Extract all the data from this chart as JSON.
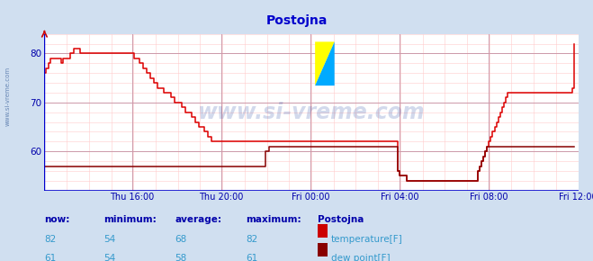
{
  "title": "Postojna",
  "title_color": "#0000cc",
  "bg_color": "#d0dff0",
  "plot_bg_color": "#ffffff",
  "grid_minor_color": "#ffcccc",
  "grid_major_color": "#cc99aa",
  "tick_color": "#0000aa",
  "xlim": [
    0,
    287
  ],
  "ylim": [
    52,
    84
  ],
  "yticks": [
    60,
    70,
    80
  ],
  "xtick_positions": [
    47,
    95,
    143,
    191,
    239,
    287
  ],
  "xtick_labels": [
    "Thu 16:00",
    "Thu 20:00",
    "Fri 00:00",
    "Fri 04:00",
    "Fri 08:00",
    "Fri 12:00"
  ],
  "temp_color": "#dd0000",
  "dew_color": "#880000",
  "line_width": 1.1,
  "watermark": "www.si-vreme.com",
  "watermark_color": "#3355aa",
  "watermark_alpha": 0.22,
  "legend_title": "Postojna",
  "legend_headers": [
    "now:",
    "minimum:",
    "average:",
    "maximum:"
  ],
  "temp_stats": [
    82,
    54,
    68,
    82
  ],
  "dew_stats": [
    61,
    54,
    58,
    61
  ],
  "temp_label": "temperature[F]",
  "dew_label": "dew point[F]",
  "temp_sq_color": "#cc0000",
  "dew_sq_color": "#880000",
  "temp_data": [
    76,
    77,
    78,
    79,
    79,
    79,
    79,
    79,
    79,
    78,
    79,
    79,
    79,
    79,
    80,
    80,
    81,
    81,
    81,
    80,
    80,
    80,
    80,
    80,
    80,
    80,
    80,
    80,
    80,
    80,
    80,
    80,
    80,
    80,
    80,
    80,
    80,
    80,
    80,
    80,
    80,
    80,
    80,
    80,
    80,
    80,
    80,
    80,
    79,
    79,
    79,
    78,
    78,
    77,
    77,
    76,
    76,
    75,
    75,
    74,
    74,
    73,
    73,
    73,
    72,
    72,
    72,
    72,
    71,
    71,
    70,
    70,
    70,
    70,
    69,
    69,
    68,
    68,
    68,
    67,
    67,
    66,
    66,
    65,
    65,
    65,
    64,
    64,
    63,
    63,
    62,
    62,
    62,
    62,
    62,
    62,
    62,
    62,
    62,
    62,
    62,
    62,
    62,
    62,
    62,
    62,
    62,
    62,
    62,
    62,
    62,
    62,
    62,
    62,
    62,
    62,
    62,
    62,
    62,
    62,
    62,
    62,
    62,
    62,
    62,
    62,
    62,
    62,
    62,
    62,
    62,
    62,
    62,
    62,
    62,
    62,
    62,
    62,
    62,
    62,
    62,
    62,
    62,
    62,
    62,
    62,
    62,
    62,
    62,
    62,
    62,
    62,
    62,
    62,
    62,
    62,
    62,
    62,
    62,
    62,
    62,
    62,
    62,
    62,
    62,
    62,
    62,
    62,
    62,
    62,
    62,
    62,
    62,
    62,
    62,
    62,
    62,
    62,
    62,
    62,
    62,
    62,
    62,
    62,
    62,
    62,
    62,
    62,
    62,
    62,
    56,
    55,
    55,
    55,
    55,
    54,
    54,
    54,
    54,
    54,
    54,
    54,
    54,
    54,
    54,
    54,
    54,
    54,
    54,
    54,
    54,
    54,
    54,
    54,
    54,
    54,
    54,
    54,
    54,
    54,
    54,
    54,
    54,
    54,
    54,
    54,
    54,
    54,
    54,
    54,
    54,
    54,
    54,
    56,
    57,
    58,
    59,
    60,
    61,
    62,
    63,
    64,
    65,
    66,
    67,
    68,
    69,
    70,
    71,
    72,
    72,
    72,
    72,
    72,
    72,
    72,
    72,
    72,
    72,
    72,
    72,
    72,
    72,
    72,
    72,
    72,
    72,
    72,
    72,
    72,
    72,
    72,
    72,
    72,
    72,
    72,
    72,
    72,
    72,
    72,
    72,
    72,
    72,
    72,
    73,
    82
  ],
  "dew_data": [
    57,
    57,
    57,
    57,
    57,
    57,
    57,
    57,
    57,
    57,
    57,
    57,
    57,
    57,
    57,
    57,
    57,
    57,
    57,
    57,
    57,
    57,
    57,
    57,
    57,
    57,
    57,
    57,
    57,
    57,
    57,
    57,
    57,
    57,
    57,
    57,
    57,
    57,
    57,
    57,
    57,
    57,
    57,
    57,
    57,
    57,
    57,
    57,
    57,
    57,
    57,
    57,
    57,
    57,
    57,
    57,
    57,
    57,
    57,
    57,
    57,
    57,
    57,
    57,
    57,
    57,
    57,
    57,
    57,
    57,
    57,
    57,
    57,
    57,
    57,
    57,
    57,
    57,
    57,
    57,
    57,
    57,
    57,
    57,
    57,
    57,
    57,
    57,
    57,
    57,
    57,
    57,
    57,
    57,
    57,
    57,
    57,
    57,
    57,
    57,
    57,
    57,
    57,
    57,
    57,
    57,
    57,
    57,
    57,
    57,
    57,
    57,
    57,
    57,
    57,
    57,
    57,
    57,
    57,
    60,
    60,
    61,
    61,
    61,
    61,
    61,
    61,
    61,
    61,
    61,
    61,
    61,
    61,
    61,
    61,
    61,
    61,
    61,
    61,
    61,
    61,
    61,
    61,
    61,
    61,
    61,
    61,
    61,
    61,
    61,
    61,
    61,
    61,
    61,
    61,
    61,
    61,
    61,
    61,
    61,
    61,
    61,
    61,
    61,
    61,
    61,
    61,
    61,
    61,
    61,
    61,
    61,
    61,
    61,
    61,
    61,
    61,
    61,
    61,
    61,
    61,
    61,
    61,
    61,
    61,
    61,
    61,
    61,
    61,
    61,
    56,
    55,
    55,
    55,
    55,
    54,
    54,
    54,
    54,
    54,
    54,
    54,
    54,
    54,
    54,
    54,
    54,
    54,
    54,
    54,
    54,
    54,
    54,
    54,
    54,
    54,
    54,
    54,
    54,
    54,
    54,
    54,
    54,
    54,
    54,
    54,
    54,
    54,
    54,
    54,
    54,
    54,
    54,
    56,
    57,
    58,
    59,
    60,
    61,
    61,
    61,
    61,
    61,
    61,
    61,
    61,
    61,
    61,
    61,
    61,
    61,
    61,
    61,
    61,
    61,
    61,
    61,
    61,
    61,
    61,
    61,
    61,
    61,
    61,
    61,
    61,
    61,
    61,
    61,
    61,
    61,
    61,
    61,
    61,
    61,
    61,
    61,
    61,
    61,
    61,
    61,
    61,
    61,
    61,
    61,
    61
  ]
}
